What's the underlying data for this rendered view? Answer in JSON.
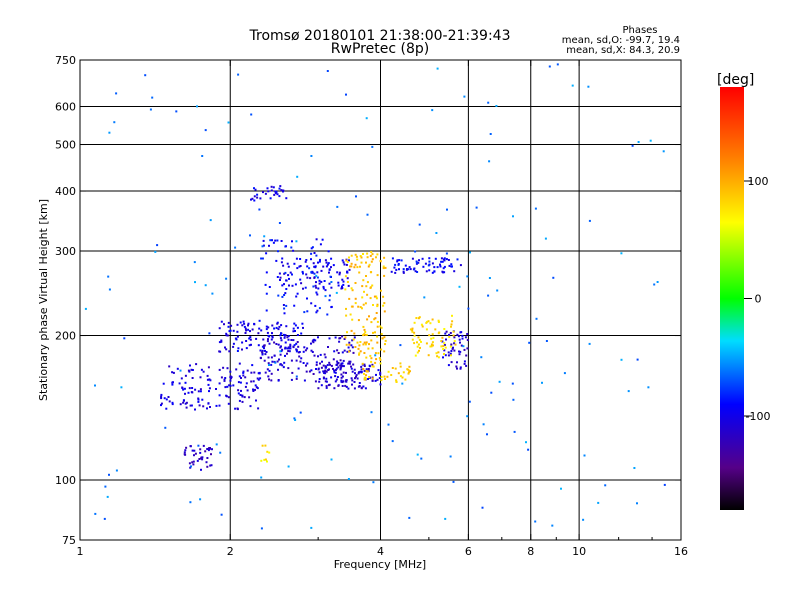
{
  "chart_data": {
    "type": "scatter",
    "title": "Tromsø 20180101 21:38:00-21:39:43",
    "subtitle": "RwPretec (8p)",
    "xlabel": "Frequency [MHz]",
    "ylabel": "Stationary phase Virtual Height [km]",
    "x_scale": "log",
    "y_scale": "log",
    "xlim": [
      1,
      16
    ],
    "ylim": [
      75,
      750
    ],
    "x_ticks": [
      1,
      2,
      4,
      6,
      8,
      10,
      16
    ],
    "x_tick_labels": [
      "1",
      "2",
      "4",
      "6",
      "8",
      "10",
      "16"
    ],
    "x_grid": [
      2,
      4,
      6,
      8,
      10
    ],
    "y_ticks": [
      75,
      100,
      200,
      300,
      400,
      500,
      600,
      750
    ],
    "y_tick_labels": [
      "75",
      "100",
      "200",
      "300",
      "400",
      "500",
      "600",
      "750"
    ],
    "y_grid": [
      100,
      200,
      300,
      400,
      500,
      600
    ],
    "grid": true,
    "legend": {
      "title": "Phases",
      "line1": "mean, sd,O: -99.7, 19.4",
      "line2": "mean, sd,X: 84.3, 20.9",
      "placement": "top-right"
    },
    "colorbar": {
      "label": "[deg]",
      "range": [
        -180,
        180
      ],
      "ticks": [
        100,
        0,
        -100
      ],
      "tick_labels": [
        "100",
        "0",
        "-100"
      ],
      "colormap": "rainbow"
    },
    "series": [
      {
        "clusters": [
          {
            "x0": 1.45,
            "x1": 2.3,
            "h0": 140,
            "h1": 175,
            "phase": -105,
            "n": 150
          },
          {
            "x0": 1.9,
            "x1": 2.8,
            "h0": 185,
            "h1": 215,
            "phase": -100,
            "n": 120
          },
          {
            "x0": 2.3,
            "x1": 3.6,
            "h0": 160,
            "h1": 200,
            "phase": -110,
            "n": 160
          },
          {
            "x0": 3.0,
            "x1": 4.0,
            "h0": 155,
            "h1": 175,
            "phase": -110,
            "n": 110
          },
          {
            "x0": 2.5,
            "x1": 3.5,
            "h0": 250,
            "h1": 290,
            "phase": -100,
            "n": 90
          },
          {
            "x0": 2.2,
            "x1": 2.6,
            "h0": 380,
            "h1": 410,
            "phase": -100,
            "n": 30
          },
          {
            "x0": 4.2,
            "x1": 5.8,
            "h0": 270,
            "h1": 290,
            "phase": -95,
            "n": 70
          },
          {
            "x0": 2.3,
            "x1": 3.2,
            "h0": 220,
            "h1": 320,
            "phase": -90,
            "n": 80
          },
          {
            "x0": 1.6,
            "x1": 1.85,
            "h0": 105,
            "h1": 118,
            "phase": -115,
            "n": 40
          },
          {
            "x0": 5.3,
            "x1": 6.0,
            "h0": 170,
            "h1": 205,
            "phase": -110,
            "n": 50
          }
        ]
      },
      {
        "clusters": [
          {
            "x0": 3.4,
            "x1": 4.1,
            "h0": 175,
            "h1": 300,
            "phase": 90,
            "n": 150
          },
          {
            "x0": 4.6,
            "x1": 5.7,
            "h0": 180,
            "h1": 220,
            "phase": 80,
            "n": 70
          },
          {
            "x0": 3.6,
            "x1": 4.6,
            "h0": 160,
            "h1": 175,
            "phase": 85,
            "n": 40
          },
          {
            "x0": 2.3,
            "x1": 2.4,
            "h0": 108,
            "h1": 118,
            "phase": 75,
            "n": 8
          }
        ]
      },
      {
        "clusters": [
          {
            "x0": 1.0,
            "x1": 15.0,
            "h0": 78,
            "h1": 740,
            "phase": -60,
            "n": 160
          }
        ]
      }
    ]
  }
}
